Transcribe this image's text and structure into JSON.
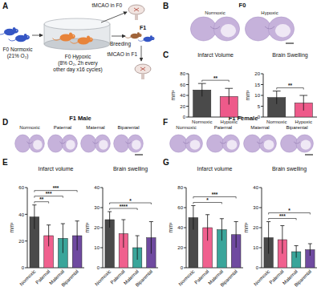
{
  "panel_labels": [
    "A",
    "B",
    "C",
    "D",
    "E",
    "F",
    "G"
  ],
  "diagram": {
    "f0_normoxic": [
      "F0 Normoxic",
      "(21% O₂)"
    ],
    "f0_hypoxic": [
      "F0 Hypoxic",
      "(8% O₂, 2h every",
      "other day x16 cycles)"
    ],
    "tmcao_f0": "tMCAO in F0",
    "breeding": "Breeding",
    "f1": "F1",
    "tmcao_f1": "tMCAO in F1"
  },
  "brain_panels": [
    {
      "title": "F0",
      "labels": [
        "Normoxic",
        "Hypoxic"
      ]
    },
    {
      "title": "F1 Male",
      "labels": [
        "Normoxic",
        "Paternal",
        "Maternal",
        "Biparental"
      ]
    },
    {
      "title": "F1 Female",
      "labels": [
        "Normoxic",
        "Paternal",
        "Maternal",
        "Biparental"
      ]
    }
  ],
  "chart_data": [
    {
      "type": "bar",
      "title": "Infarct Volume",
      "y_label": "mm³",
      "categories": [
        "Normoxic",
        "Hypoxic"
      ],
      "values": [
        50,
        38
      ],
      "errors": [
        12,
        15
      ],
      "colors": [
        "#4a4a4a",
        "#ee5a8a"
      ],
      "ylim": [
        0,
        80
      ],
      "yticks": [
        0,
        20,
        40,
        60,
        80
      ],
      "significance": [
        {
          "from": 0,
          "to": 1,
          "label": "**"
        }
      ]
    },
    {
      "type": "bar",
      "title": "Brain Swelling",
      "y_label": "mm³",
      "categories": [
        "Normoxic",
        "Hypoxic"
      ],
      "values": [
        9,
        6.5
      ],
      "errors": [
        3,
        3.5
      ],
      "colors": [
        "#4a4a4a",
        "#ee5a8a"
      ],
      "ylim": [
        0,
        20
      ],
      "yticks": [
        0,
        5,
        10,
        15,
        20
      ],
      "significance": [
        {
          "from": 0,
          "to": 1,
          "label": "**"
        }
      ]
    },
    {
      "type": "bar",
      "title": "Infarct volume",
      "y_label": "mm³",
      "categories": [
        "Normoxic",
        "Paternal",
        "Maternal",
        "Biparental"
      ],
      "values": [
        38,
        24,
        22,
        24
      ],
      "errors": [
        9,
        8,
        11,
        11
      ],
      "colors": [
        "#4a4a4a",
        "#f0608e",
        "#3aa59a",
        "#6f4aa0"
      ],
      "ylim": [
        0,
        60
      ],
      "yticks": [
        0,
        20,
        40,
        60
      ],
      "significance": [
        {
          "from": 0,
          "to": 1,
          "label": "**"
        },
        {
          "from": 0,
          "to": 2,
          "label": "***"
        },
        {
          "from": 0,
          "to": 3,
          "label": "***"
        }
      ]
    },
    {
      "type": "bar",
      "title": "Brain swelling",
      "y_label": "mm³",
      "categories": [
        "Normoxic",
        "Paternal",
        "Maternal",
        "Biparental"
      ],
      "values": [
        24,
        17,
        10,
        15
      ],
      "errors": [
        4,
        7,
        6,
        8
      ],
      "colors": [
        "#4a4a4a",
        "#f0608e",
        "#3aa59a",
        "#6f4aa0"
      ],
      "ylim": [
        0,
        40
      ],
      "yticks": [
        0,
        10,
        20,
        30,
        40
      ],
      "significance": [
        {
          "from": 0,
          "to": 2,
          "label": "****"
        },
        {
          "from": 0,
          "to": 3,
          "label": "*"
        }
      ]
    },
    {
      "type": "bar",
      "title": "Infarct volume",
      "y_label": "mm³",
      "categories": [
        "Normoxic",
        "Paternal",
        "Maternal",
        "Biparental"
      ],
      "values": [
        50,
        40,
        38,
        33
      ],
      "errors": [
        12,
        13,
        11,
        13
      ],
      "colors": [
        "#4a4a4a",
        "#f0608e",
        "#3aa59a",
        "#6f4aa0"
      ],
      "ylim": [
        0,
        80
      ],
      "yticks": [
        0,
        20,
        40,
        60,
        80
      ],
      "significance": [
        {
          "from": 0,
          "to": 2,
          "label": "*"
        },
        {
          "from": 0,
          "to": 3,
          "label": "***"
        }
      ]
    },
    {
      "type": "bar",
      "title": "Brain swelling",
      "y_label": "mm³",
      "categories": [
        "Normoxic",
        "Paternal",
        "Maternal",
        "Biparental"
      ],
      "values": [
        15,
        14,
        8,
        9
      ],
      "errors": [
        8,
        7,
        3,
        3
      ],
      "colors": [
        "#4a4a4a",
        "#f0608e",
        "#3aa59a",
        "#6f4aa0"
      ],
      "ylim": [
        0,
        40
      ],
      "yticks": [
        0,
        10,
        20,
        30,
        40
      ],
      "significance": [
        {
          "from": 0,
          "to": 2,
          "label": "***"
        },
        {
          "from": 0,
          "to": 3,
          "label": "*"
        }
      ]
    }
  ]
}
